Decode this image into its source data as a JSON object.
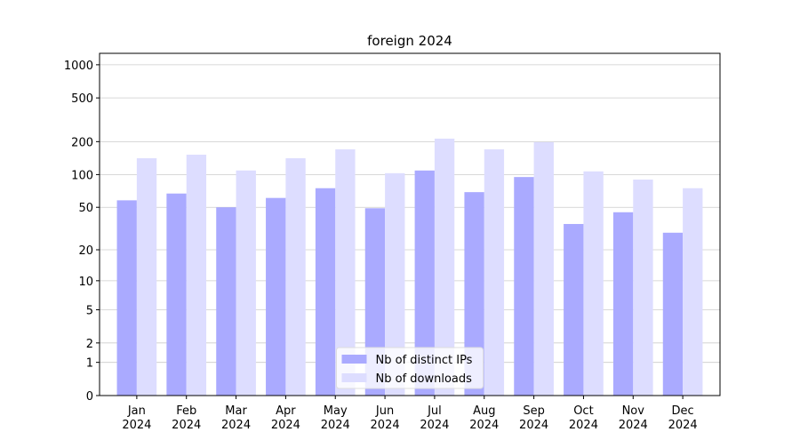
{
  "chart_data": {
    "type": "bar",
    "title": "foreign 2024",
    "categories": [
      [
        "Jan",
        "2024"
      ],
      [
        "Feb",
        "2024"
      ],
      [
        "Mar",
        "2024"
      ],
      [
        "Apr",
        "2024"
      ],
      [
        "May",
        "2024"
      ],
      [
        "Jun",
        "2024"
      ],
      [
        "Jul",
        "2024"
      ],
      [
        "Aug",
        "2024"
      ],
      [
        "Sep",
        "2024"
      ],
      [
        "Oct",
        "2024"
      ],
      [
        "Nov",
        "2024"
      ],
      [
        "Dec",
        "2024"
      ]
    ],
    "series": [
      {
        "name": "Nb of distinct IPs",
        "color": "#aaaaff",
        "values": [
          58,
          67,
          50,
          61,
          75,
          49,
          109,
          69,
          95,
          35,
          45,
          29
        ]
      },
      {
        "name": "Nb of downloads",
        "color": "#ddddff",
        "values": [
          141,
          152,
          109,
          141,
          170,
          103,
          213,
          170,
          198,
          107,
          90,
          75
        ]
      }
    ],
    "yscale": "log1p",
    "ylim": [
      0,
      1270
    ],
    "yticks": [
      0,
      1,
      2,
      5,
      10,
      20,
      50,
      100,
      200,
      500,
      1000
    ],
    "grid": true,
    "legend": "lower center"
  }
}
